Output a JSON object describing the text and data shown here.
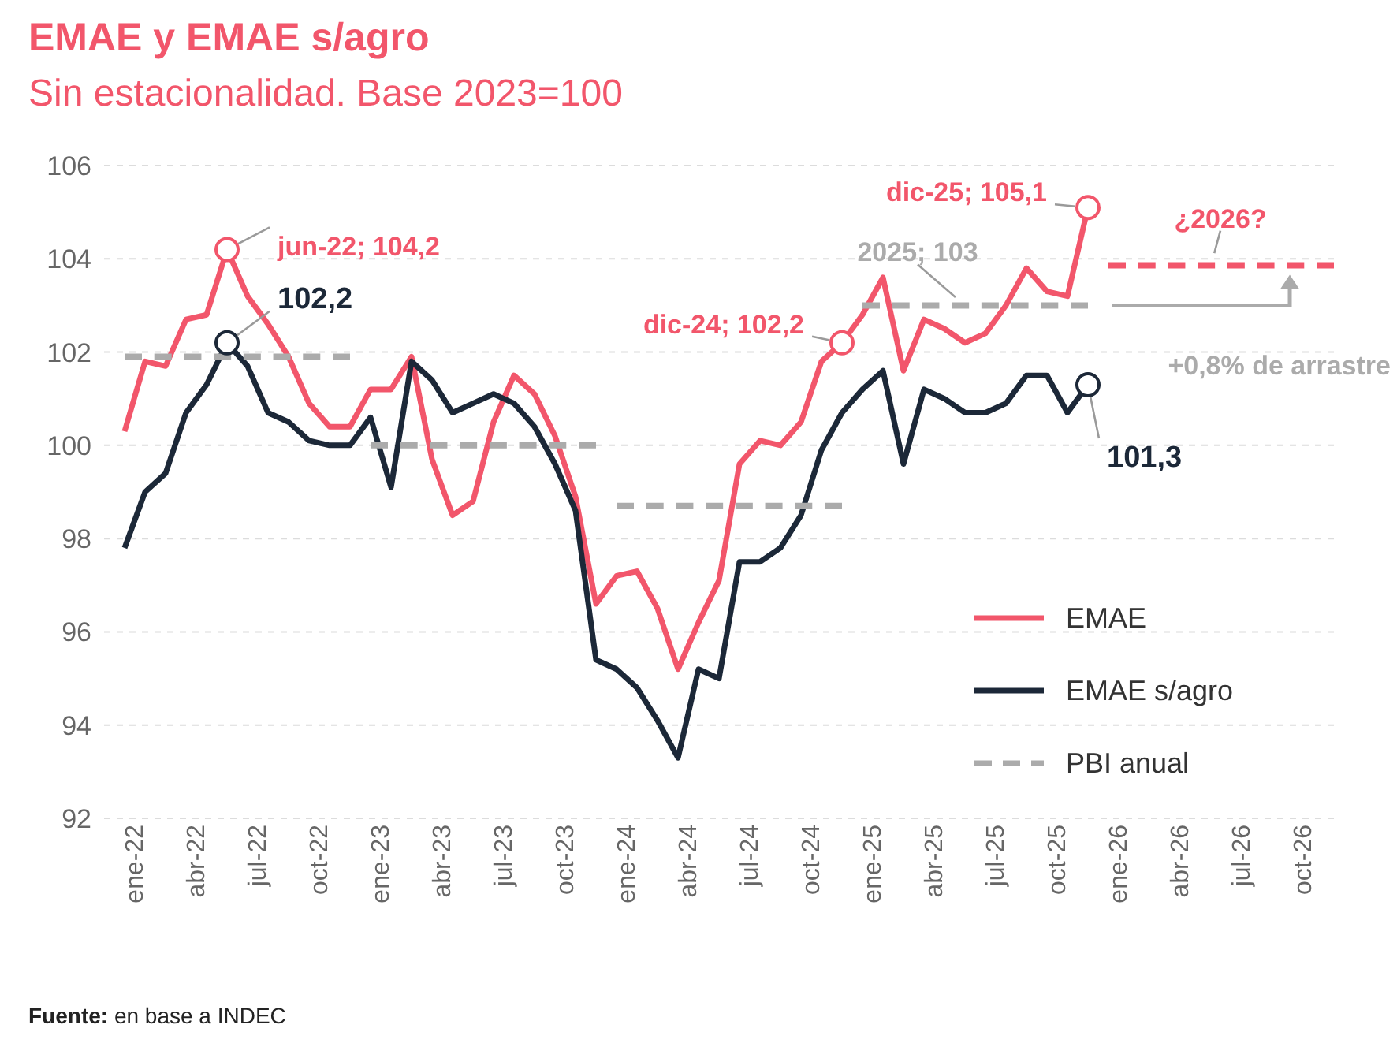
{
  "chart_data": {
    "type": "line",
    "title": "EMAE y EMAE s/agro",
    "subtitle": "Sin estacionalidad. Base 2023=100",
    "x": [
      "2022-01",
      "2022-02",
      "2022-03",
      "2022-04",
      "2022-05",
      "2022-06",
      "2022-07",
      "2022-08",
      "2022-09",
      "2022-10",
      "2022-11",
      "2022-12",
      "2023-01",
      "2023-02",
      "2023-03",
      "2023-04",
      "2023-05",
      "2023-06",
      "2023-07",
      "2023-08",
      "2023-09",
      "2023-10",
      "2023-11",
      "2023-12",
      "2024-01",
      "2024-02",
      "2024-03",
      "2024-04",
      "2024-05",
      "2024-06",
      "2024-07",
      "2024-08",
      "2024-09",
      "2024-10",
      "2024-11",
      "2024-12",
      "2025-01",
      "2025-02",
      "2025-03",
      "2025-04",
      "2025-05",
      "2025-06",
      "2025-07",
      "2025-08",
      "2025-09",
      "2025-10",
      "2025-11",
      "2025-12"
    ],
    "series": [
      {
        "name": "EMAE",
        "color": "#f2566b",
        "values": [
          100.3,
          101.8,
          101.7,
          102.7,
          102.8,
          104.2,
          103.2,
          102.6,
          101.9,
          100.9,
          100.4,
          100.4,
          101.2,
          101.2,
          101.9,
          99.7,
          98.5,
          98.8,
          100.5,
          101.5,
          101.1,
          100.2,
          98.9,
          96.6,
          97.2,
          97.3,
          96.5,
          95.2,
          96.2,
          97.1,
          99.6,
          100.1,
          100.0,
          100.5,
          101.8,
          102.2,
          102.8,
          103.6,
          101.6,
          102.7,
          102.5,
          102.2,
          102.4,
          103.0,
          103.8,
          103.3,
          103.2,
          105.1
        ]
      },
      {
        "name": "EMAE s/agro",
        "color": "#1c2838",
        "values": [
          97.8,
          99.0,
          99.4,
          100.7,
          101.3,
          102.2,
          101.7,
          100.7,
          100.5,
          100.1,
          100.0,
          100.0,
          100.6,
          99.1,
          101.8,
          101.4,
          100.7,
          100.9,
          101.1,
          100.9,
          100.4,
          99.6,
          98.6,
          95.4,
          95.2,
          94.8,
          94.1,
          93.3,
          95.2,
          95.0,
          97.5,
          97.5,
          97.8,
          98.5,
          99.9,
          100.7,
          101.2,
          101.6,
          99.6,
          101.2,
          101.0,
          100.7,
          100.7,
          100.9,
          101.5,
          101.5,
          100.7,
          101.3
        ]
      },
      {
        "name": "PBI anual",
        "color": "#ababab",
        "line_style": "dashed",
        "x": [
          "2022-01",
          "2022-12"
        ],
        "values": [
          101.9,
          101.9
        ]
      },
      {
        "color": "#ababab",
        "line_style": "dashed",
        "x": [
          "2023-01",
          "2023-12"
        ],
        "values": [
          100.0,
          100.0
        ]
      },
      {
        "color": "#ababab",
        "line_style": "dashed",
        "x": [
          "2024-01",
          "2024-12"
        ],
        "values": [
          98.7,
          98.7
        ]
      },
      {
        "color": "#ababab",
        "line_style": "dashed",
        "x": [
          "2025-01",
          "2025-12"
        ],
        "values": [
          103,
          103
        ]
      },
      {
        "color": "#f2566b",
        "line_style": "dashed",
        "x": [
          "2026-01",
          "2026-12"
        ],
        "values": [
          103.86,
          103.86
        ]
      }
    ],
    "xlim": [
      "2021-12",
      "2026-12"
    ],
    "xticks": [
      {
        "value": "2022-01",
        "label": "ene-22"
      },
      {
        "value": "2022-04",
        "label": "abr-22"
      },
      {
        "value": "2022-07",
        "label": "jul-22"
      },
      {
        "value": "2022-10",
        "label": "oct-22"
      },
      {
        "value": "2023-01",
        "label": "ene-23"
      },
      {
        "value": "2023-04",
        "label": "abr-23"
      },
      {
        "value": "2023-07",
        "label": "jul-23"
      },
      {
        "value": "2023-10",
        "label": "oct-23"
      },
      {
        "value": "2024-01",
        "label": "ene-24"
      },
      {
        "value": "2024-04",
        "label": "abr-24"
      },
      {
        "value": "2024-07",
        "label": "jul-24"
      },
      {
        "value": "2024-10",
        "label": "oct-24"
      },
      {
        "value": "2025-01",
        "label": "ene-25"
      },
      {
        "value": "2025-04",
        "label": "abr-25"
      },
      {
        "value": "2025-07",
        "label": "jul-25"
      },
      {
        "value": "2025-10",
        "label": "oct-25"
      },
      {
        "value": "2026-01",
        "label": "ene-26"
      },
      {
        "value": "2026-04",
        "label": "abr-26"
      },
      {
        "value": "2026-07",
        "label": "jul-26"
      },
      {
        "value": "2026-10",
        "label": "oct-26"
      }
    ],
    "ylim": [
      92,
      106
    ],
    "yticks": [
      92,
      94,
      96,
      98,
      100,
      102,
      104,
      106
    ],
    "grid": "y",
    "legend": "bottom right",
    "marker": "none",
    "annotations": [
      {
        "text": "jun-22; 104,2",
        "x": "2022-06",
        "y": 104.2
      },
      {
        "text": "102,2",
        "x": "2022-06",
        "y": 102.2
      },
      {
        "text": "dic-24; 102,2",
        "x": "2024-12",
        "y": 102.2
      },
      {
        "text": "dic-25; 105,1",
        "x": "2025-12",
        "y": 105.1
      },
      {
        "text": "2025; 103",
        "x": "2025-06",
        "y": 103
      },
      {
        "text": "101,3",
        "x": "2025-12",
        "y": 101.3
      },
      {
        "text": "¿2026?",
        "x": "2026-06",
        "y": 103.86
      },
      "+0,8% de arrastre",
      "Fuente: en base a INDEC"
    ]
  }
}
